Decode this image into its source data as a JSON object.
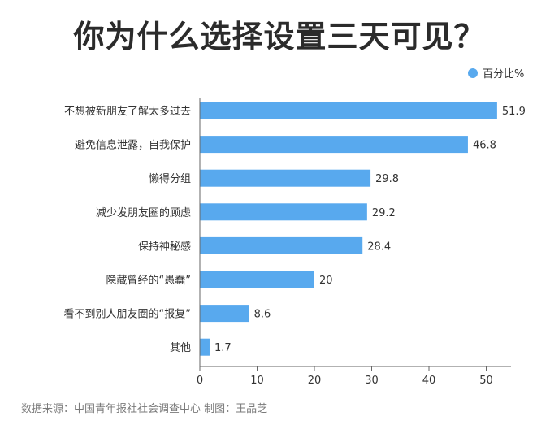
{
  "title": "你为什么选择设置三天可见？",
  "source": "数据来源：中国青年报社社会调查中心  制图：王品芝",
  "chart_data": {
    "type": "bar",
    "orientation": "horizontal",
    "categories": [
      "不想被新朋友了解太多过去",
      "避免信息泄露，自我保护",
      "懒得分组",
      "减少发朋友圈的顾虑",
      "保持神秘感",
      "隐藏曾经的“愚蠢”",
      "看不到别人朋友圈的“报复”",
      "其他"
    ],
    "series": [
      {
        "name": "百分比%",
        "values": [
          51.9,
          46.8,
          29.8,
          29.2,
          28.4,
          20,
          8.6,
          1.7
        ],
        "color": "#58a9ee"
      }
    ],
    "xlim": [
      0,
      50
    ],
    "xticks": [
      "0",
      "10",
      "20",
      "30",
      "40",
      "50"
    ],
    "legend_position": "top-right",
    "grid": false
  }
}
